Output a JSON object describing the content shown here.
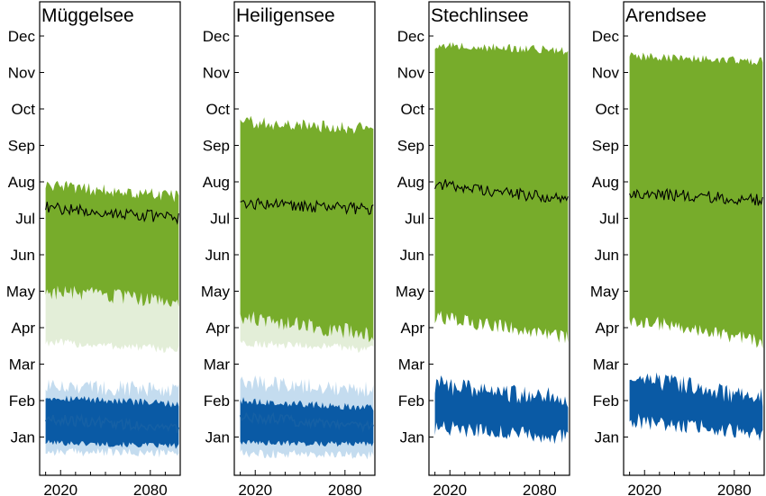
{
  "chart_data": [
    {
      "type": "area",
      "title": "Müggelsee",
      "x_ticks": [
        2020,
        2080
      ],
      "xlim": [
        2006,
        2100
      ],
      "y_ticks": [
        "Jan",
        "Feb",
        "Mar",
        "Apr",
        "May",
        "Jun",
        "Jul",
        "Aug",
        "Sep",
        "Oct",
        "Nov",
        "Dec"
      ],
      "y_tick_values": [
        1,
        2,
        3,
        4,
        5,
        6,
        7,
        8,
        9,
        10,
        11,
        12
      ],
      "ylim": [
        0,
        13
      ],
      "colors": {
        "green_band": "#77ac2b",
        "light_green_band": "#e3eed8",
        "blue_band": "#0a5aa5",
        "light_blue_band": "#c4dcef",
        "line": "#000000",
        "blue_line": "#1560a5"
      },
      "green_band": {
        "start_year": 2010,
        "end_year": 2099,
        "upper_from": 7.9,
        "upper_to": 7.6,
        "lower_from": 5.0,
        "lower_to": 4.7
      },
      "light_green_band": {
        "upper_from": 5.0,
        "upper_to": 4.7,
        "lower_from": 3.6,
        "lower_to": 3.4
      },
      "median_line": {
        "from": 7.3,
        "to": 7.0
      },
      "blue_band": {
        "upper_from": 2.1,
        "upper_to": 1.9,
        "lower_from": 0.85,
        "lower_to": 0.75
      },
      "light_blue_band": {
        "upper_from": 2.4,
        "upper_to": 2.3,
        "lower_from": 0.6,
        "lower_to": 0.55
      },
      "blue_line": {
        "from": 1.5,
        "to": 1.25
      }
    },
    {
      "type": "area",
      "title": "Heiligensee",
      "x_ticks": [
        2020,
        2080
      ],
      "xlim": [
        2006,
        2100
      ],
      "y_ticks": [
        "Jan",
        "Feb",
        "Mar",
        "Apr",
        "May",
        "Jun",
        "Jul",
        "Aug",
        "Sep",
        "Oct",
        "Nov",
        "Dec"
      ],
      "y_tick_values": [
        1,
        2,
        3,
        4,
        5,
        6,
        7,
        8,
        9,
        10,
        11,
        12
      ],
      "ylim": [
        0,
        13
      ],
      "green_band": {
        "start_year": 2010,
        "end_year": 2099,
        "upper_from": 9.65,
        "upper_to": 9.45,
        "lower_from": 4.3,
        "lower_to": 3.8
      },
      "light_green_band": {
        "upper_from": 4.3,
        "upper_to": 3.8,
        "lower_from": 3.6,
        "lower_to": 3.4
      },
      "median_line": {
        "from": 7.4,
        "to": 7.25
      },
      "blue_band": {
        "upper_from": 2.0,
        "upper_to": 1.8,
        "lower_from": 0.85,
        "lower_to": 0.8
      },
      "light_blue_band": {
        "upper_from": 2.5,
        "upper_to": 2.3,
        "lower_from": 0.55,
        "lower_to": 0.5
      },
      "blue_line": {
        "from": 1.55,
        "to": 1.3
      }
    },
    {
      "type": "area",
      "title": "Stechlinsee",
      "x_ticks": [
        2020,
        2080
      ],
      "xlim": [
        2006,
        2100
      ],
      "y_ticks": [
        "Jan",
        "Feb",
        "Mar",
        "Apr",
        "May",
        "Jun",
        "Jul",
        "Aug",
        "Sep",
        "Oct",
        "Nov",
        "Dec"
      ],
      "y_tick_values": [
        1,
        2,
        3,
        4,
        5,
        6,
        7,
        8,
        9,
        10,
        11,
        12
      ],
      "ylim": [
        0,
        13
      ],
      "green_band": {
        "start_year": 2010,
        "end_year": 2099,
        "upper_from": 11.75,
        "upper_to": 11.6,
        "lower_from": 4.3,
        "lower_to": 3.75
      },
      "median_line": {
        "from": 7.95,
        "to": 7.5
      },
      "blue_band": {
        "upper_from": 2.45,
        "upper_to": 2.05,
        "lower_from": 1.25,
        "lower_to": 1.0
      },
      "blue_line": null
    },
    {
      "type": "area",
      "title": "Arendsee",
      "x_ticks": [
        2020,
        2080
      ],
      "xlim": [
        2006,
        2100
      ],
      "y_ticks": [
        "Jan",
        "Feb",
        "Mar",
        "Apr",
        "May",
        "Jun",
        "Jul",
        "Aug",
        "Sep",
        "Oct",
        "Nov",
        "Dec"
      ],
      "y_tick_values": [
        1,
        2,
        3,
        4,
        5,
        6,
        7,
        8,
        9,
        10,
        11,
        12
      ],
      "ylim": [
        0,
        13
      ],
      "green_band": {
        "start_year": 2010,
        "end_year": 2099,
        "upper_from": 11.45,
        "upper_to": 11.3,
        "lower_from": 4.25,
        "lower_to": 3.6
      },
      "median_line": {
        "from": 7.7,
        "to": 7.5
      },
      "blue_band": {
        "upper_from": 2.6,
        "upper_to": 2.1,
        "lower_from": 1.45,
        "lower_to": 1.1
      },
      "blue_line": null
    }
  ]
}
